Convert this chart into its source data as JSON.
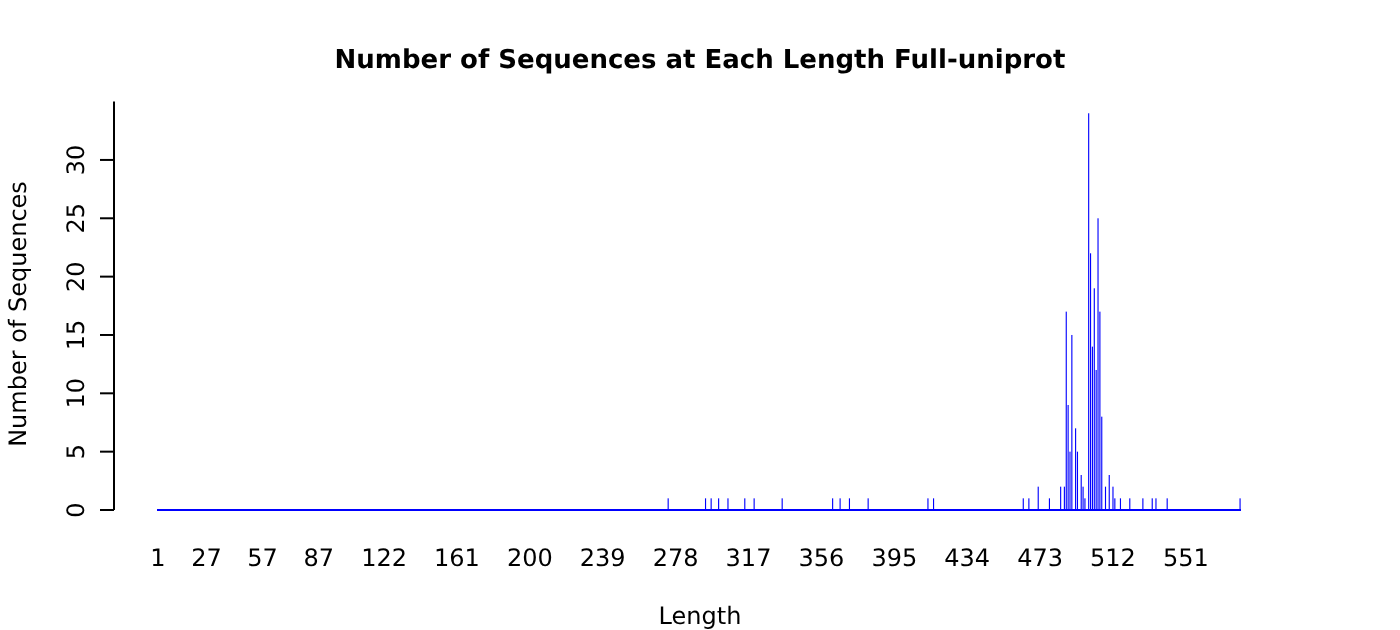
{
  "chart_data": {
    "type": "bar",
    "title": "Number of Sequences at Each Length  Full-uniprot",
    "xlabel": "Length",
    "ylabel": "Number of Sequences",
    "x": [
      274,
      294,
      297,
      301,
      306,
      315,
      320,
      335,
      362,
      366,
      371,
      381,
      413,
      416,
      464,
      467,
      472,
      478,
      484,
      486,
      487,
      488,
      489,
      490,
      492,
      493,
      495,
      496,
      497,
      499,
      500,
      501,
      502,
      503,
      504,
      505,
      506,
      508,
      510,
      512,
      513,
      516,
      521,
      528,
      533,
      535,
      541,
      580
    ],
    "values": [
      1,
      1,
      1,
      1,
      1,
      1,
      1,
      1,
      1,
      1,
      1,
      1,
      1,
      1,
      1,
      1,
      2,
      1,
      2,
      2,
      17,
      9,
      5,
      15,
      7,
      5,
      3,
      2,
      1,
      34,
      22,
      14,
      19,
      12,
      25,
      17,
      8,
      2,
      3,
      2,
      1,
      1,
      1,
      1,
      1,
      1,
      1,
      1
    ],
    "color": "#0000ff",
    "xlim": [
      0.5,
      580.5
    ],
    "xticks": [
      1,
      27,
      57,
      87,
      122,
      161,
      200,
      239,
      278,
      317,
      356,
      395,
      434,
      473,
      512,
      551
    ],
    "ylim": [
      0,
      35
    ],
    "yticks": [
      0,
      5,
      10,
      15,
      20,
      25,
      30
    ],
    "grid": false
  }
}
